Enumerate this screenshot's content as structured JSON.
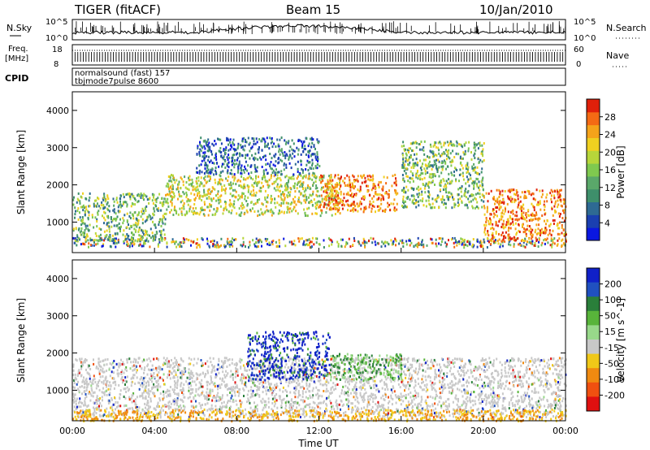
{
  "header": {
    "radar": "TIGER (fitACF)",
    "beam": "Beam 15",
    "date": "10/Jan/2010"
  },
  "top_strips": {
    "nsky_label": "N.Sky",
    "nsky_tick_top": "10^5",
    "nsky_tick_bottom": "10^0",
    "nsearch_label": "N.Search",
    "freq_label": "Freq.",
    "freq_unit": "[MHz]",
    "freq_tick_top": "18",
    "freq_tick_bottom": "8",
    "nave_label": "Nave",
    "nave_tick_top": "60",
    "nave_tick_bottom": "0",
    "cpid_label": "CPID",
    "cpid_lines": [
      "normalsound (fast) 157",
      "tbjmode7pulse 8600"
    ]
  },
  "chart_data": [
    {
      "type": "heatmap",
      "parameter": "Power",
      "ylabel": "Slant Range [km]",
      "ylim": [
        180,
        4500
      ],
      "yticks": [
        "1000",
        "2000",
        "3000",
        "4000"
      ],
      "xlim_hours": [
        0,
        24
      ],
      "colorbar_label": "Power [dB]",
      "colorbar_ticks": [
        "4",
        "8",
        "12",
        "16",
        "20",
        "24",
        "28"
      ],
      "colorbar_colors": [
        "#0a17e0",
        "#1a3fb0",
        "#2e6a93",
        "#3e8f6b",
        "#5aa86a",
        "#7fc94f",
        "#b7d63a",
        "#f0d020",
        "#f5a31a",
        "#f46a14",
        "#e0200a"
      ],
      "scatter_bands": [
        {
          "t_start": 0.0,
          "t_end": 24.0,
          "range_lo": 350,
          "range_hi": 600,
          "level": "mixed"
        },
        {
          "t_start": 0.0,
          "t_end": 4.5,
          "range_lo": 500,
          "range_hi": 1800,
          "level": "medium"
        },
        {
          "t_start": 4.5,
          "t_end": 13.0,
          "range_lo": 1200,
          "range_hi": 2300,
          "level": "medium-high"
        },
        {
          "t_start": 6.0,
          "t_end": 12.0,
          "range_lo": 2300,
          "range_hi": 3300,
          "level": "low-medium"
        },
        {
          "t_start": 12.0,
          "t_end": 15.8,
          "range_lo": 1300,
          "range_hi": 2300,
          "level": "high"
        },
        {
          "t_start": 16.0,
          "t_end": 20.0,
          "range_lo": 1400,
          "range_hi": 3200,
          "level": "medium"
        },
        {
          "t_start": 20.0,
          "t_end": 24.0,
          "range_lo": 500,
          "range_hi": 1900,
          "level": "high"
        }
      ]
    },
    {
      "type": "heatmap",
      "parameter": "Velocity",
      "ylabel": "Slant Range [km]",
      "ylim": [
        180,
        4500
      ],
      "yticks": [
        "1000",
        "2000",
        "3000",
        "4000"
      ],
      "xlim_hours": [
        0,
        24
      ],
      "colorbar_label": "Velocity [m s^-1]",
      "colorbar_ticks": [
        "200",
        "100",
        "50",
        "15",
        "-15",
        "-50",
        "-100",
        "-200"
      ],
      "colorbar_colors": [
        "#1020c8",
        "#2050c0",
        "#2a7f3a",
        "#58b43a",
        "#98d88a",
        "#c8c8c8",
        "#f0c818",
        "#f08a10",
        "#f05010",
        "#e01010"
      ],
      "scatter_bands": [
        {
          "t_start": 0.0,
          "t_end": 24.0,
          "range_lo": 300,
          "range_hi": 1900,
          "level": "ground-scatter"
        },
        {
          "t_start": 8.5,
          "t_end": 12.5,
          "range_lo": 1300,
          "range_hi": 2600,
          "level": "positive-large"
        },
        {
          "t_start": 12.5,
          "t_end": 16.0,
          "range_lo": 1300,
          "range_hi": 2000,
          "level": "positive-moderate"
        },
        {
          "t_start": 0.0,
          "t_end": 24.0,
          "range_lo": 200,
          "range_hi": 500,
          "level": "negative"
        }
      ]
    }
  ],
  "xaxis": {
    "label": "Time UT",
    "ticks": [
      "00:00",
      "04:00",
      "08:00",
      "12:00",
      "16:00",
      "20:00",
      "00:00"
    ]
  }
}
